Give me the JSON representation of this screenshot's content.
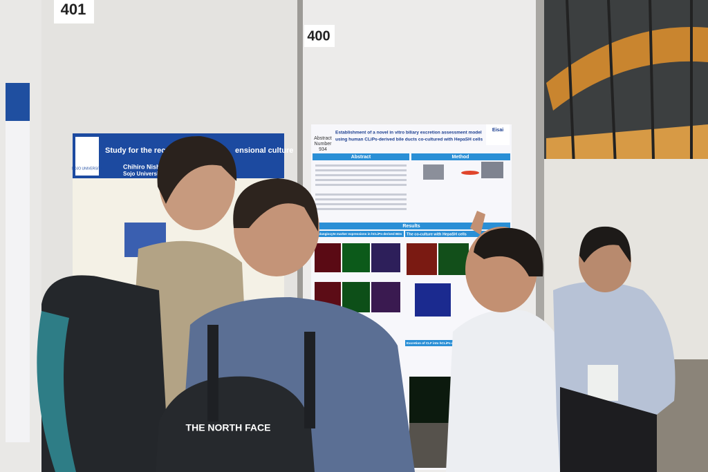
{
  "booths": [
    {
      "number": "401",
      "poster": {
        "logo": "SOJO UNIVERSITY",
        "title_parts": [
          "Study for the reconstr",
          "ensional culture"
        ],
        "authors": "Chihiro Nishiura, Ry",
        "affiliation": "Sojo University"
      }
    },
    {
      "number": "400",
      "poster": {
        "logo": "Eisai",
        "abstract_number": [
          "Abstract",
          "Number",
          "934"
        ],
        "title_lines": [
          "Establishment of a novel in vitro biliary excretion assessment model",
          "using human CLiPs-derived bile ducts co-cultured with HepaSH cells"
        ],
        "sections": [
          "Abstract",
          "Method",
          "Results"
        ],
        "subsections": [
          "Cholangiocyte marker expressions in hCLiPs-derived BDs",
          "The co-culture with HepaSH cells",
          "Excretion of CLF into hCLiPs-derived BDs"
        ]
      }
    }
  ],
  "backpack_logo": "THE NORTH FACE"
}
